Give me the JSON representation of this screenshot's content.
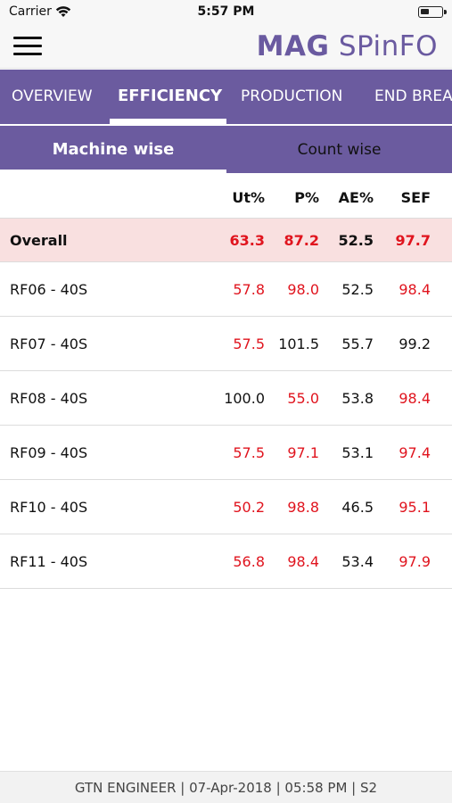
{
  "status_bar": {
    "carrier": "Carrier",
    "time": "5:57 PM",
    "wifi_icon": "wifi-icon",
    "battery_icon": "battery-icon"
  },
  "app_bar": {
    "menu_icon": "hamburger-menu-icon",
    "logo_bold": "MAG",
    "logo_rest": "SPinFO",
    "brand_color": "#6b5b9f"
  },
  "tabs": [
    {
      "label": "OVERVIEW",
      "active": false
    },
    {
      "label": "EFFICIENCY",
      "active": true
    },
    {
      "label": "PRODUCTION",
      "active": false
    },
    {
      "label": "END BREA",
      "active": false
    }
  ],
  "subtabs": {
    "left": "Machine wise",
    "right": "Count wise"
  },
  "table": {
    "headers": [
      "Ut%",
      "P%",
      "AE%",
      "SEF"
    ],
    "overall": {
      "name": "Overall",
      "values": [
        "63.3",
        "87.2",
        "52.5",
        "97.7"
      ],
      "colors": [
        "red",
        "red",
        "black",
        "red"
      ]
    },
    "rows": [
      {
        "name": "RF06 - 40S",
        "values": [
          "57.8",
          "98.0",
          "52.5",
          "98.4"
        ],
        "colors": [
          "red",
          "red",
          "black",
          "red"
        ]
      },
      {
        "name": "RF07 - 40S",
        "values": [
          "57.5",
          "101.5",
          "55.7",
          "99.2"
        ],
        "colors": [
          "red",
          "black",
          "black",
          "black"
        ]
      },
      {
        "name": "RF08 - 40S",
        "values": [
          "100.0",
          "55.0",
          "53.8",
          "98.4"
        ],
        "colors": [
          "black",
          "red",
          "black",
          "red"
        ]
      },
      {
        "name": "RF09 - 40S",
        "values": [
          "57.5",
          "97.1",
          "53.1",
          "97.4"
        ],
        "colors": [
          "red",
          "red",
          "black",
          "red"
        ]
      },
      {
        "name": "RF10 - 40S",
        "values": [
          "50.2",
          "98.8",
          "46.5",
          "95.1"
        ],
        "colors": [
          "red",
          "red",
          "black",
          "red"
        ]
      },
      {
        "name": "RF11 - 40S",
        "values": [
          "56.8",
          "98.4",
          "53.4",
          "97.9"
        ],
        "colors": [
          "red",
          "red",
          "black",
          "red"
        ]
      }
    ],
    "value_colors": {
      "red": "#e0141e",
      "black": "#111111"
    }
  },
  "footer": {
    "text": "GTN ENGINEER | 07-Apr-2018 | 05:58 PM | S2"
  }
}
